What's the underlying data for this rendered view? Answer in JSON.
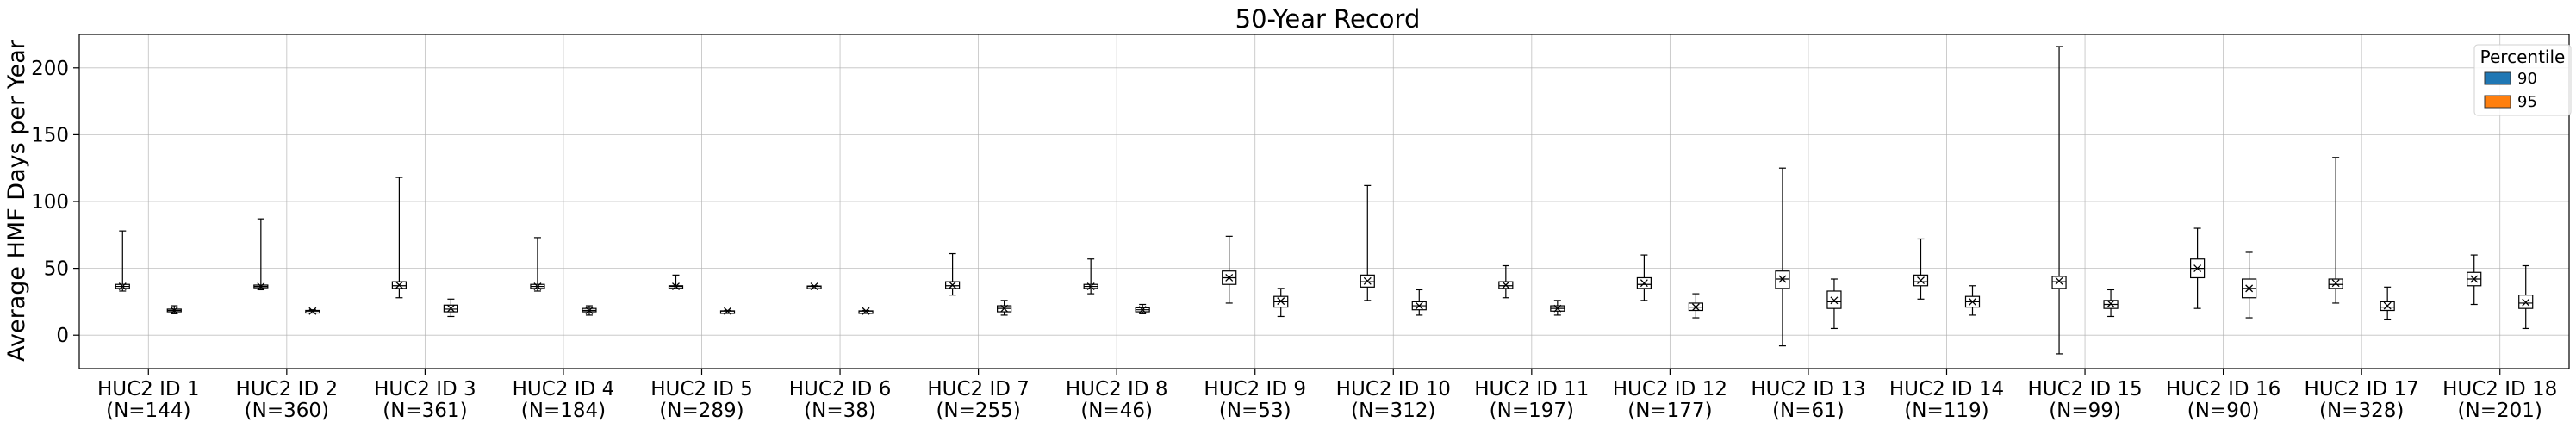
{
  "chart_data": {
    "type": "box",
    "title": "50-Year Record",
    "xlabel": "",
    "ylabel": "Average HMF Days per Year",
    "ylim": [
      -25,
      225
    ],
    "yticks": [
      0,
      50,
      100,
      150,
      200
    ],
    "grid": true,
    "legend": {
      "title": "Percentile",
      "placement": "top-right"
    },
    "categories": [
      {
        "name": "HUC2 ID 1",
        "n": "(N=144)"
      },
      {
        "name": "HUC2 ID 2",
        "n": "(N=360)"
      },
      {
        "name": "HUC2 ID 3",
        "n": "(N=361)"
      },
      {
        "name": "HUC2 ID 4",
        "n": "(N=184)"
      },
      {
        "name": "HUC2 ID 5",
        "n": "(N=289)"
      },
      {
        "name": "HUC2 ID 6",
        "n": "(N=38)"
      },
      {
        "name": "HUC2 ID 7",
        "n": "(N=255)"
      },
      {
        "name": "HUC2 ID 8",
        "n": "(N=46)"
      },
      {
        "name": "HUC2 ID 9",
        "n": "(N=53)"
      },
      {
        "name": "HUC2 ID 10",
        "n": "(N=312)"
      },
      {
        "name": "HUC2 ID 11",
        "n": "(N=197)"
      },
      {
        "name": "HUC2 ID 12",
        "n": "(N=177)"
      },
      {
        "name": "HUC2 ID 13",
        "n": "(N=61)"
      },
      {
        "name": "HUC2 ID 14",
        "n": "(N=119)"
      },
      {
        "name": "HUC2 ID 15",
        "n": "(N=99)"
      },
      {
        "name": "HUC2 ID 16",
        "n": "(N=90)"
      },
      {
        "name": "HUC2 ID 17",
        "n": "(N=328)"
      },
      {
        "name": "HUC2 ID 18",
        "n": "(N=201)"
      }
    ],
    "series": [
      {
        "name": "90",
        "color": "#1f77b4",
        "boxes": [
          {
            "min": 33,
            "q1": 35,
            "median": 36.5,
            "mean": 36.5,
            "q3": 38,
            "max": 78
          },
          {
            "min": 34,
            "q1": 35.5,
            "median": 36.5,
            "mean": 36.5,
            "q3": 37.5,
            "max": 87
          },
          {
            "min": 28,
            "q1": 35,
            "median": 37,
            "mean": 37.5,
            "q3": 40,
            "max": 118
          },
          {
            "min": 33,
            "q1": 35,
            "median": 36.5,
            "mean": 36.5,
            "q3": 38,
            "max": 73
          },
          {
            "min": 35.5,
            "q1": 36,
            "median": 36.5,
            "mean": 36.5,
            "q3": 37,
            "max": 45
          },
          {
            "min": 36,
            "q1": 36.2,
            "median": 36.5,
            "mean": 36.5,
            "q3": 36.8,
            "max": 37
          },
          {
            "min": 30,
            "q1": 35,
            "median": 37,
            "mean": 37.5,
            "q3": 40,
            "max": 61
          },
          {
            "min": 31,
            "q1": 35,
            "median": 36.5,
            "mean": 36.5,
            "q3": 38,
            "max": 57
          },
          {
            "min": 24,
            "q1": 38,
            "median": 43,
            "mean": 43,
            "q3": 48,
            "max": 74
          },
          {
            "min": 26,
            "q1": 36,
            "median": 40,
            "mean": 40.5,
            "q3": 45,
            "max": 112
          },
          {
            "min": 28,
            "q1": 35,
            "median": 37,
            "mean": 37.5,
            "q3": 40,
            "max": 52
          },
          {
            "min": 26,
            "q1": 35,
            "median": 38,
            "mean": 39,
            "q3": 43,
            "max": 60
          },
          {
            "min": -8,
            "q1": 35,
            "median": 42,
            "mean": 42,
            "q3": 48,
            "max": 125
          },
          {
            "min": 27,
            "q1": 37,
            "median": 40,
            "mean": 41,
            "q3": 45,
            "max": 72
          },
          {
            "min": -14,
            "q1": 35,
            "median": 40,
            "mean": 40.5,
            "q3": 44,
            "max": 216
          },
          {
            "min": 20,
            "q1": 43,
            "median": 50,
            "mean": 50,
            "q3": 57,
            "max": 80
          },
          {
            "min": 24,
            "q1": 35,
            "median": 38,
            "mean": 39,
            "q3": 42,
            "max": 133
          },
          {
            "min": 23,
            "q1": 37,
            "median": 42,
            "mean": 42,
            "q3": 47,
            "max": 60
          }
        ]
      },
      {
        "name": "95",
        "color": "#ff7f0e",
        "boxes": [
          {
            "min": 16,
            "q1": 17.5,
            "median": 18.5,
            "mean": 18.5,
            "q3": 19.5,
            "max": 22
          },
          {
            "min": 17,
            "q1": 17.5,
            "median": 18,
            "mean": 18,
            "q3": 18.5,
            "max": 19
          },
          {
            "min": 14,
            "q1": 17.5,
            "median": 19.5,
            "mean": 20,
            "q3": 22.5,
            "max": 27
          },
          {
            "min": 15,
            "q1": 17.5,
            "median": 18.5,
            "mean": 18.5,
            "q3": 20,
            "max": 22
          },
          {
            "min": 17.5,
            "q1": 17.8,
            "median": 18,
            "mean": 18,
            "q3": 18.2,
            "max": 18.5
          },
          {
            "min": 17.5,
            "q1": 17.8,
            "median": 18,
            "mean": 18,
            "q3": 18.2,
            "max": 18.5
          },
          {
            "min": 15,
            "q1": 17.5,
            "median": 20,
            "mean": 20,
            "q3": 22,
            "max": 26
          },
          {
            "min": 16,
            "q1": 17.5,
            "median": 19,
            "mean": 19,
            "q3": 20.5,
            "max": 23
          },
          {
            "min": 14,
            "q1": 21,
            "median": 25,
            "mean": 25.5,
            "q3": 29,
            "max": 35
          },
          {
            "min": 15,
            "q1": 19,
            "median": 22,
            "mean": 22,
            "q3": 25,
            "max": 34
          },
          {
            "min": 15,
            "q1": 18,
            "median": 20,
            "mean": 20,
            "q3": 22,
            "max": 26
          },
          {
            "min": 13,
            "q1": 18.5,
            "median": 21,
            "mean": 21,
            "q3": 24,
            "max": 31
          },
          {
            "min": 5,
            "q1": 20,
            "median": 25,
            "mean": 26,
            "q3": 33,
            "max": 42
          },
          {
            "min": 15,
            "q1": 21,
            "median": 25,
            "mean": 25,
            "q3": 29,
            "max": 37
          },
          {
            "min": 14,
            "q1": 20,
            "median": 23,
            "mean": 23.5,
            "q3": 26,
            "max": 34
          },
          {
            "min": 13,
            "q1": 28,
            "median": 35,
            "mean": 35,
            "q3": 42,
            "max": 62
          },
          {
            "min": 12,
            "q1": 18.5,
            "median": 21,
            "mean": 22,
            "q3": 25,
            "max": 36
          },
          {
            "min": 5,
            "q1": 20,
            "median": 24,
            "mean": 24.5,
            "q3": 30,
            "max": 52
          }
        ]
      }
    ]
  }
}
